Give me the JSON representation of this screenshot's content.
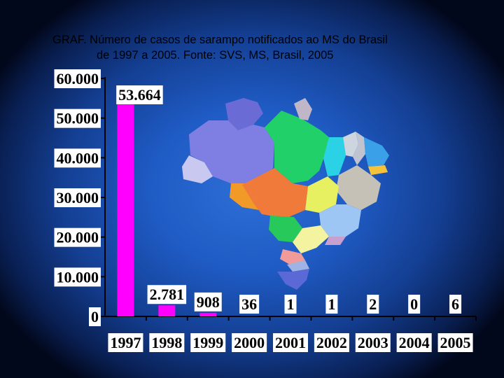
{
  "title": {
    "line1": "GRAF. Número de casos de sarampo notificados ao MS do Brasil",
    "line2": "de 1997 a 2005. Fonte: SVS, MS, Brasil, 2005"
  },
  "colors": {
    "bar": "#ff00ff",
    "label_box": "#ffffff",
    "axis": "#000000"
  },
  "chart_data": {
    "type": "bar",
    "title": "GRAF. Número de casos de sarampo notificados ao MS do Brasil de 1997 a 2005. Fonte: SVS, MS, Brasil, 2005",
    "xlabel": "",
    "ylabel": "",
    "categories": [
      "1997",
      "1998",
      "1999",
      "2000",
      "2001",
      "2002",
      "2003",
      "2004",
      "2005"
    ],
    "values": [
      53664,
      2781,
      908,
      36,
      1,
      1,
      2,
      0,
      6
    ],
    "value_labels": [
      "53.664",
      "2.781",
      "908",
      "36",
      "1",
      "1",
      "2",
      "0",
      "6"
    ],
    "ylim": [
      0,
      60000
    ],
    "yticks": [
      0,
      10000,
      20000,
      30000,
      40000,
      50000,
      60000
    ],
    "ytick_labels": [
      "0",
      "10.000",
      "20.000",
      "30.000",
      "40.000",
      "50.000",
      "60.000"
    ],
    "grid": false,
    "legend": "none",
    "background_picture": "map-of-brazil"
  }
}
